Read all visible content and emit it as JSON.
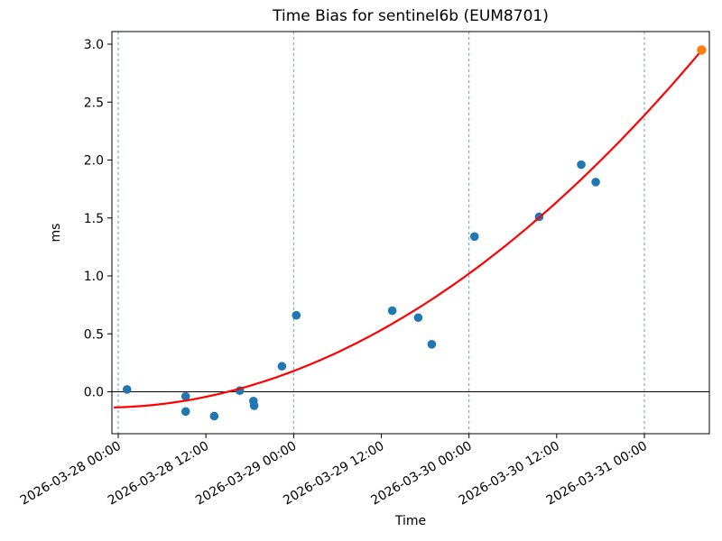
{
  "figure": {
    "title": "Time Bias for sentinel6b (EUM8701)",
    "xlabel": "Time",
    "ylabel": "ms"
  },
  "chart_data": {
    "type": "scatter",
    "title": "Time Bias for sentinel6b (EUM8701)",
    "xlabel": "Time",
    "ylabel": "ms",
    "grid": "vertical-dashed-at-midnights",
    "legend": "none",
    "x_axis": {
      "epoch": "2026-03-28 00:00",
      "tick_labels": [
        "2026-03-28 00:00",
        "2026-03-28 12:00",
        "2026-03-29 00:00",
        "2026-03-29 12:00",
        "2026-03-30 00:00",
        "2026-03-30 12:00",
        "2026-03-31 00:00"
      ],
      "tick_hours": [
        0,
        12,
        24,
        36,
        48,
        60,
        72
      ],
      "gridline_hours": [
        0,
        24,
        48,
        72
      ],
      "range_hours": [
        -0.9,
        80.9
      ]
    },
    "y_axis": {
      "tick_labels": [
        "0.0",
        "0.5",
        "1.0",
        "1.5",
        "2.0",
        "2.5",
        "3.0"
      ],
      "tick_values": [
        0,
        0.5,
        1.0,
        1.5,
        2.0,
        2.5,
        3.0
      ],
      "range": [
        -0.36,
        3.11
      ]
    },
    "series": [
      {
        "name": "time-bias-measurements",
        "marker": "circle",
        "color": "#1f77b4",
        "points": [
          {
            "time": "2026-03-28 01:12",
            "hours": 1.2,
            "ms": 0.02
          },
          {
            "time": "2026-03-28 09:14",
            "hours": 9.23,
            "ms": -0.04
          },
          {
            "time": "2026-03-28 09:14",
            "hours": 9.23,
            "ms": -0.17
          },
          {
            "time": "2026-03-28 13:08",
            "hours": 13.13,
            "ms": -0.21
          },
          {
            "time": "2026-03-28 16:38",
            "hours": 16.63,
            "ms": 0.01
          },
          {
            "time": "2026-03-28 18:30",
            "hours": 18.5,
            "ms": -0.08
          },
          {
            "time": "2026-03-28 18:36",
            "hours": 18.6,
            "ms": -0.12
          },
          {
            "time": "2026-03-28 22:24",
            "hours": 22.4,
            "ms": 0.22
          },
          {
            "time": "2026-03-29 00:22",
            "hours": 24.37,
            "ms": 0.66
          },
          {
            "time": "2026-03-29 13:30",
            "hours": 37.5,
            "ms": 0.7
          },
          {
            "time": "2026-03-29 17:03",
            "hours": 41.05,
            "ms": 0.64
          },
          {
            "time": "2026-03-29 18:54",
            "hours": 42.9,
            "ms": 0.41
          },
          {
            "time": "2026-03-30 00:45",
            "hours": 48.75,
            "ms": 1.34
          },
          {
            "time": "2026-03-30 09:36",
            "hours": 57.6,
            "ms": 1.51
          },
          {
            "time": "2026-03-30 15:22",
            "hours": 63.36,
            "ms": 1.96
          },
          {
            "time": "2026-03-30 17:20",
            "hours": 65.34,
            "ms": 1.81
          }
        ]
      },
      {
        "name": "extrapolated-point",
        "marker": "circle",
        "color": "#ff7f0e",
        "points": [
          {
            "time": "2026-03-31 07:50",
            "hours": 79.83,
            "ms": 2.95
          }
        ]
      }
    ],
    "fit_curve": {
      "name": "quadratic-fit",
      "type": "quadratic",
      "color": "#ff0000",
      "coeffs_hours": {
        "a": 0.000457,
        "b": 0.00211,
        "c": -0.1345
      },
      "t_range_hours": [
        -0.5,
        79.83
      ]
    },
    "zero_line": {
      "value": 0,
      "color": "#000000"
    },
    "colors": {
      "gridline": "#5f9fc8",
      "spine": "#000000",
      "tick": "#000000"
    }
  }
}
